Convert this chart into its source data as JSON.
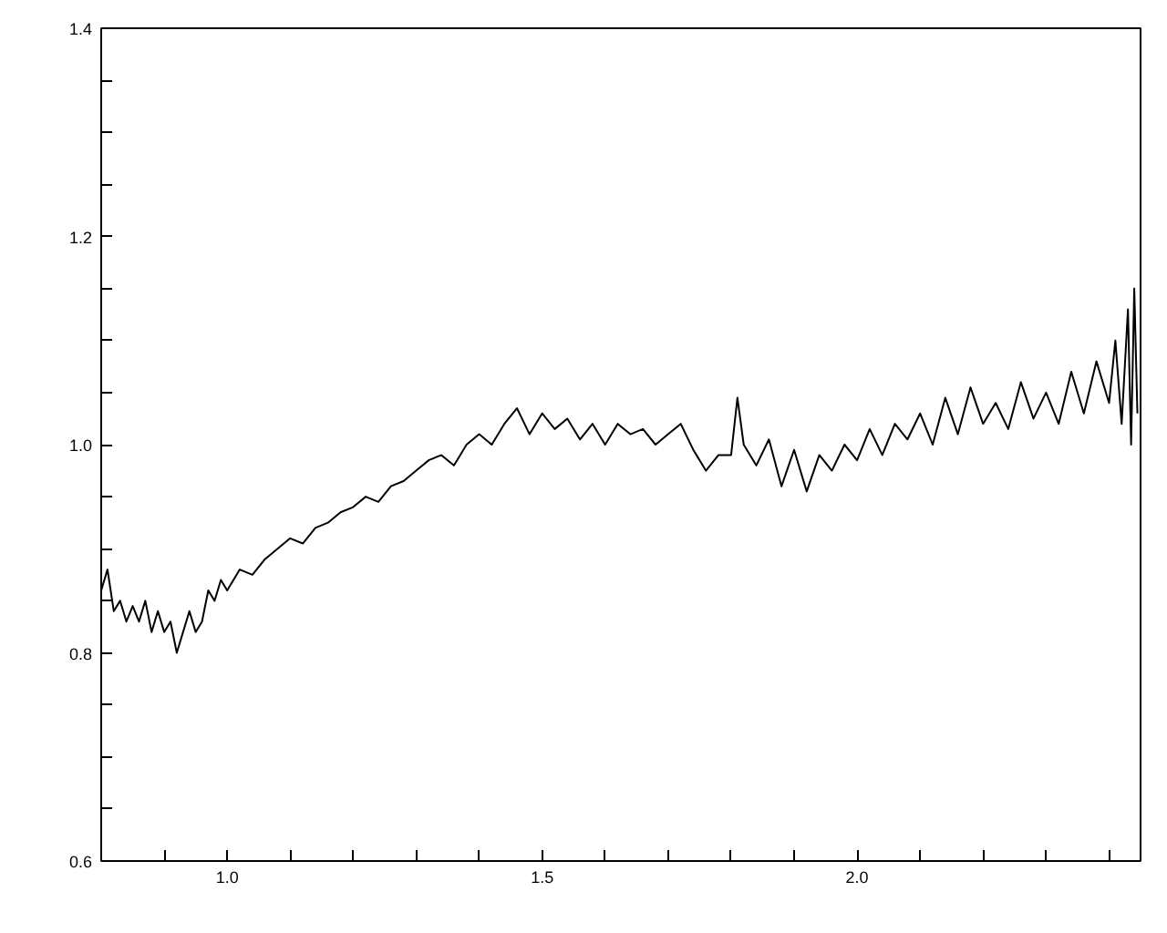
{
  "chart_data": {
    "type": "line",
    "color": "#000000",
    "x": [
      0.8,
      0.81,
      0.82,
      0.83,
      0.84,
      0.85,
      0.86,
      0.87,
      0.88,
      0.89,
      0.9,
      0.91,
      0.92,
      0.93,
      0.94,
      0.95,
      0.96,
      0.97,
      0.98,
      0.99,
      1.0,
      1.02,
      1.04,
      1.06,
      1.08,
      1.1,
      1.12,
      1.14,
      1.16,
      1.18,
      1.2,
      1.22,
      1.24,
      1.26,
      1.28,
      1.3,
      1.32,
      1.34,
      1.36,
      1.38,
      1.4,
      1.42,
      1.44,
      1.46,
      1.48,
      1.5,
      1.52,
      1.54,
      1.56,
      1.58,
      1.6,
      1.62,
      1.64,
      1.66,
      1.68,
      1.7,
      1.72,
      1.74,
      1.76,
      1.78,
      1.8,
      1.81,
      1.82,
      1.84,
      1.86,
      1.88,
      1.9,
      1.92,
      1.94,
      1.96,
      1.98,
      2.0,
      2.02,
      2.04,
      2.06,
      2.08,
      2.1,
      2.12,
      2.14,
      2.16,
      2.18,
      2.2,
      2.22,
      2.24,
      2.26,
      2.28,
      2.3,
      2.32,
      2.34,
      2.36,
      2.38,
      2.4,
      2.41,
      2.42,
      2.43,
      2.435,
      2.44,
      2.445
    ],
    "values": [
      0.86,
      0.88,
      0.84,
      0.85,
      0.83,
      0.845,
      0.83,
      0.85,
      0.82,
      0.84,
      0.82,
      0.83,
      0.8,
      0.82,
      0.84,
      0.82,
      0.83,
      0.86,
      0.85,
      0.87,
      0.86,
      0.88,
      0.875,
      0.89,
      0.9,
      0.91,
      0.905,
      0.92,
      0.925,
      0.935,
      0.94,
      0.95,
      0.945,
      0.96,
      0.965,
      0.975,
      0.985,
      0.99,
      0.98,
      1.0,
      1.01,
      1.0,
      1.02,
      1.035,
      1.01,
      1.03,
      1.015,
      1.025,
      1.005,
      1.02,
      1.0,
      1.02,
      1.01,
      1.015,
      1.0,
      1.01,
      1.02,
      0.995,
      0.975,
      0.99,
      0.99,
      1.045,
      1.0,
      0.98,
      1.005,
      0.96,
      0.995,
      0.955,
      0.99,
      0.975,
      1.0,
      0.985,
      1.015,
      0.99,
      1.02,
      1.005,
      1.03,
      1.0,
      1.045,
      1.01,
      1.055,
      1.02,
      1.04,
      1.015,
      1.06,
      1.025,
      1.05,
      1.02,
      1.07,
      1.03,
      1.08,
      1.04,
      1.1,
      1.02,
      1.13,
      1.0,
      1.15,
      1.03
    ],
    "xlim": [
      0.8,
      2.45
    ],
    "ylim": [
      0.6,
      1.4
    ],
    "xticks": [
      {
        "value": 0.9,
        "label": null
      },
      {
        "value": 1.0,
        "label": "1.0"
      },
      {
        "value": 1.1,
        "label": null
      },
      {
        "value": 1.2,
        "label": null
      },
      {
        "value": 1.3,
        "label": null
      },
      {
        "value": 1.4,
        "label": null
      },
      1.5,
      {
        "value": 1.6,
        "label": null
      },
      {
        "value": 1.7,
        "label": null
      },
      {
        "value": 1.8,
        "label": null
      },
      {
        "value": 1.9,
        "label": null
      },
      {
        "value": 2.0,
        "label": "2.0"
      },
      {
        "value": 2.1,
        "label": null
      },
      {
        "value": 2.2,
        "label": null
      },
      {
        "value": 2.3,
        "label": null
      },
      {
        "value": 2.4,
        "label": null
      }
    ],
    "yticks": [
      0.6,
      {
        "value": 0.65,
        "label": null
      },
      {
        "value": 0.7,
        "label": null
      },
      {
        "value": 0.75,
        "label": null
      },
      0.8,
      {
        "value": 0.85,
        "label": null
      },
      {
        "value": 0.9,
        "label": null
      },
      {
        "value": 0.95,
        "label": null
      },
      {
        "value": 1.0,
        "label": "1.0"
      },
      {
        "value": 1.05,
        "label": null
      },
      {
        "value": 1.1,
        "label": null
      },
      {
        "value": 1.15,
        "label": null
      },
      1.2,
      {
        "value": 1.25,
        "label": null
      },
      {
        "value": 1.3,
        "label": null
      },
      {
        "value": 1.35,
        "label": null
      },
      1.4
    ],
    "grid": false,
    "line_style": "solid",
    "marker": "none"
  }
}
